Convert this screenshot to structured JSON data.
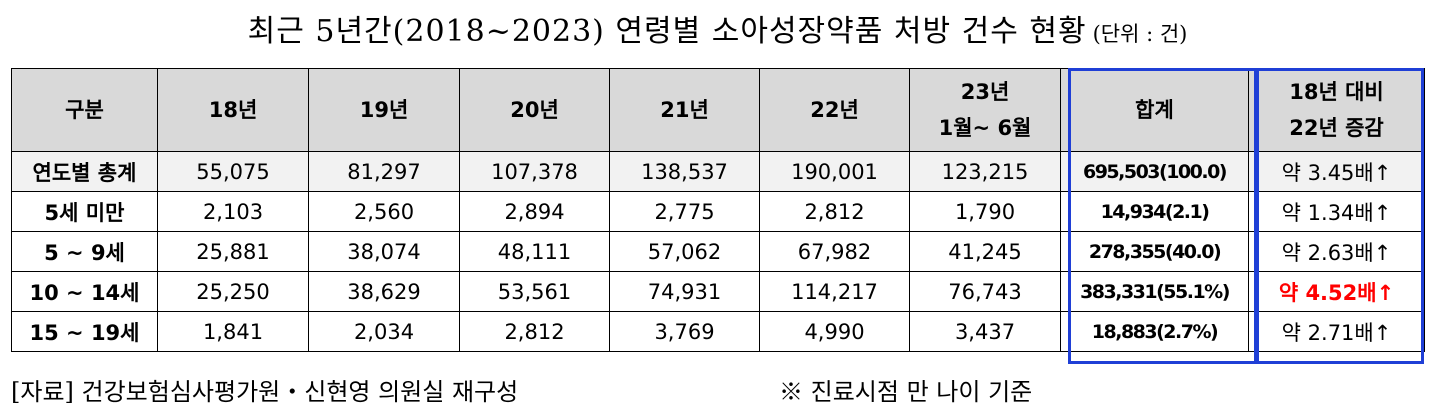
{
  "title": "최근 5년간(2018~2023) 연령별 소아성장약품 처방 건수 현황",
  "unit": "(단위 : 건)",
  "table": {
    "headers": [
      "구분",
      "18년",
      "19년",
      "20년",
      "21년",
      "22년",
      "23년",
      "합계",
      "18년 대비"
    ],
    "headers_line2": [
      "",
      "",
      "",
      "",
      "",
      "",
      "1월~ 6월",
      "",
      "22년 증감"
    ],
    "rows": [
      {
        "label": "연도별 총계",
        "values": [
          "55,075",
          "81,297",
          "107,378",
          "138,537",
          "190,001",
          "123,215"
        ],
        "sum": "695,503(100.0)",
        "ratio": "약 3.45배↑",
        "highlight": false
      },
      {
        "label": "5세 미만",
        "values": [
          "2,103",
          "2,560",
          "2,894",
          "2,775",
          "2,812",
          "1,790"
        ],
        "sum": "14,934(2.1)",
        "ratio": "약 1.34배↑",
        "highlight": false
      },
      {
        "label": "5 ~ 9세",
        "values": [
          "25,881",
          "38,074",
          "48,111",
          "57,062",
          "67,982",
          "41,245"
        ],
        "sum": "278,355(40.0)",
        "ratio": "약 2.63배↑",
        "highlight": false
      },
      {
        "label": "10 ~ 14세",
        "values": [
          "25,250",
          "38,629",
          "53,561",
          "74,931",
          "114,217",
          "76,743"
        ],
        "sum": "383,331(55.1%)",
        "ratio": "약 4.52배↑",
        "highlight": true
      },
      {
        "label": "15 ~ 19세",
        "values": [
          "1,841",
          "2,034",
          "2,812",
          "3,769",
          "4,990",
          "3,437"
        ],
        "sum": "18,883(2.7%)",
        "ratio": "약 2.71배↑",
        "highlight": false
      }
    ]
  },
  "footer": {
    "source": "[자료] 건강보험심사평가원・신현영 의원실 재구성",
    "note": "※ 진료시점 만 나이 기준"
  },
  "colors": {
    "highlight_text": "#ff0000",
    "box_border": "#1f3fd6",
    "header_bg": "#d9d9d9"
  }
}
